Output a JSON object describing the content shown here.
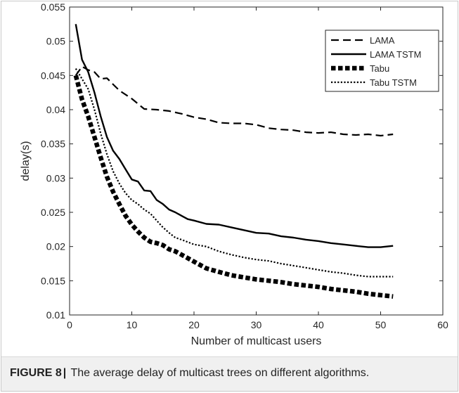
{
  "chart_data": {
    "type": "line",
    "xlabel": "Number of multicast users",
    "ylabel": "delay(s)",
    "xlim": [
      0,
      60
    ],
    "ylim": [
      0.01,
      0.055
    ],
    "xticks": [
      0,
      10,
      20,
      30,
      40,
      50,
      60
    ],
    "yticks": [
      0.01,
      0.015,
      0.02,
      0.025,
      0.03,
      0.035,
      0.04,
      0.045,
      0.05,
      0.055
    ],
    "xtick_labels": [
      "0",
      "10",
      "20",
      "30",
      "40",
      "50",
      "60"
    ],
    "ytick_labels": [
      "0.01",
      "0.015",
      "0.02",
      "0.025",
      "0.03",
      "0.035",
      "0.04",
      "0.045",
      "0.05",
      "0.055"
    ],
    "grid": false,
    "legend_position": "top-right",
    "series": [
      {
        "name": "LAMA",
        "line_style": "dashed",
        "color": "#000000",
        "x": [
          1,
          2,
          3,
          4,
          5,
          6,
          7,
          8,
          10,
          12,
          14,
          16,
          18,
          20,
          22,
          24,
          26,
          28,
          30,
          32,
          34,
          36,
          38,
          40,
          42,
          44,
          46,
          48,
          50,
          52
        ],
        "values": [
          0.045,
          0.0463,
          0.0458,
          0.0455,
          0.0445,
          0.0446,
          0.0437,
          0.0428,
          0.0416,
          0.0401,
          0.04,
          0.0398,
          0.0394,
          0.0389,
          0.0386,
          0.0381,
          0.038,
          0.038,
          0.0378,
          0.0373,
          0.0371,
          0.037,
          0.0367,
          0.0366,
          0.0367,
          0.0364,
          0.0363,
          0.0364,
          0.0362,
          0.0364
        ]
      },
      {
        "name": "LAMA TSTM",
        "line_style": "solid",
        "color": "#000000",
        "x": [
          1,
          2,
          3,
          4,
          5,
          6,
          7,
          8,
          9,
          10,
          11,
          12,
          13,
          14,
          15,
          16,
          17,
          18,
          19,
          20,
          22,
          24,
          26,
          28,
          30,
          32,
          34,
          36,
          38,
          40,
          42,
          44,
          46,
          48,
          50,
          52
        ],
        "values": [
          0.0525,
          0.0473,
          0.0455,
          0.0425,
          0.039,
          0.036,
          0.034,
          0.0328,
          0.0313,
          0.0298,
          0.0295,
          0.0282,
          0.0281,
          0.0268,
          0.0262,
          0.0254,
          0.025,
          0.0245,
          0.024,
          0.0238,
          0.0233,
          0.0232,
          0.0228,
          0.0224,
          0.022,
          0.0219,
          0.0215,
          0.0213,
          0.021,
          0.0208,
          0.0205,
          0.0203,
          0.0201,
          0.0199,
          0.0199,
          0.0201
        ]
      },
      {
        "name": "Tabu",
        "line_style": "thick-dotted",
        "color": "#000000",
        "x": [
          1,
          2,
          3,
          4,
          5,
          6,
          7,
          8,
          9,
          10,
          11,
          12,
          13,
          14,
          15,
          16,
          17,
          18,
          20,
          22,
          24,
          26,
          28,
          30,
          32,
          34,
          36,
          38,
          40,
          42,
          44,
          46,
          48,
          50,
          52
        ],
        "values": [
          0.045,
          0.0415,
          0.039,
          0.036,
          0.033,
          0.0302,
          0.028,
          0.0262,
          0.0245,
          0.0232,
          0.0222,
          0.0213,
          0.0207,
          0.0205,
          0.0202,
          0.0196,
          0.0193,
          0.0188,
          0.0178,
          0.0168,
          0.0163,
          0.0158,
          0.0155,
          0.0152,
          0.015,
          0.0148,
          0.0145,
          0.0143,
          0.0141,
          0.0138,
          0.0136,
          0.0134,
          0.0131,
          0.0129,
          0.0127
        ]
      },
      {
        "name": "Tabu TSTM",
        "line_style": "dotted",
        "color": "#000000",
        "x": [
          1,
          2,
          3,
          4,
          5,
          6,
          7,
          8,
          9,
          10,
          11,
          12,
          13,
          14,
          15,
          16,
          17,
          18,
          20,
          22,
          24,
          26,
          28,
          30,
          32,
          34,
          36,
          38,
          40,
          42,
          44,
          46,
          48,
          50,
          52
        ],
        "values": [
          0.046,
          0.0445,
          0.043,
          0.04,
          0.0365,
          0.0335,
          0.031,
          0.0292,
          0.0278,
          0.0268,
          0.0262,
          0.0254,
          0.0248,
          0.0238,
          0.0228,
          0.022,
          0.0213,
          0.021,
          0.0203,
          0.02,
          0.0193,
          0.0188,
          0.0184,
          0.0181,
          0.0179,
          0.0175,
          0.0172,
          0.0169,
          0.0166,
          0.0163,
          0.0161,
          0.0158,
          0.0156,
          0.0156,
          0.0156
        ]
      }
    ]
  },
  "caption": {
    "label": "FIGURE 8",
    "separator": "|",
    "text": " The average delay of multicast trees on different algorithms."
  }
}
